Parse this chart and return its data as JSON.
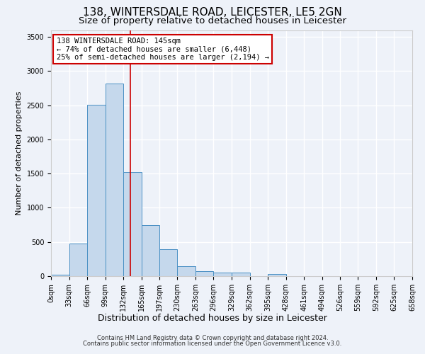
{
  "title1": "138, WINTERSDALE ROAD, LEICESTER, LE5 2GN",
  "title2": "Size of property relative to detached houses in Leicester",
  "xlabel": "Distribution of detached houses by size in Leicester",
  "ylabel": "Number of detached properties",
  "bar_edges": [
    0,
    33,
    66,
    99,
    132,
    165,
    197,
    230,
    263,
    296,
    329,
    362,
    395,
    428,
    461,
    494,
    526,
    559,
    592,
    625,
    658
  ],
  "bar_heights": [
    20,
    480,
    2510,
    2820,
    1520,
    750,
    390,
    140,
    75,
    55,
    55,
    0,
    30,
    0,
    0,
    0,
    0,
    0,
    0,
    0
  ],
  "bar_color": "#c5d8ec",
  "bar_edge_color": "#4a90c4",
  "vline_x": 145,
  "vline_color": "#cc0000",
  "annotation_line1": "138 WINTERSDALE ROAD: 145sqm",
  "annotation_line2": "← 74% of detached houses are smaller (6,448)",
  "annotation_line3": "25% of semi-detached houses are larger (2,194) →",
  "ylim": [
    0,
    3600
  ],
  "yticks": [
    0,
    500,
    1000,
    1500,
    2000,
    2500,
    3000,
    3500
  ],
  "footer1": "Contains HM Land Registry data © Crown copyright and database right 2024.",
  "footer2": "Contains public sector information licensed under the Open Government Licence v3.0.",
  "bg_color": "#eef2f9",
  "grid_color": "#ffffff",
  "title1_fontsize": 11,
  "title2_fontsize": 9.5,
  "ylabel_fontsize": 8,
  "xlabel_fontsize": 9,
  "tick_fontsize": 7,
  "ann_fontsize": 7.5,
  "footer_fontsize": 6
}
